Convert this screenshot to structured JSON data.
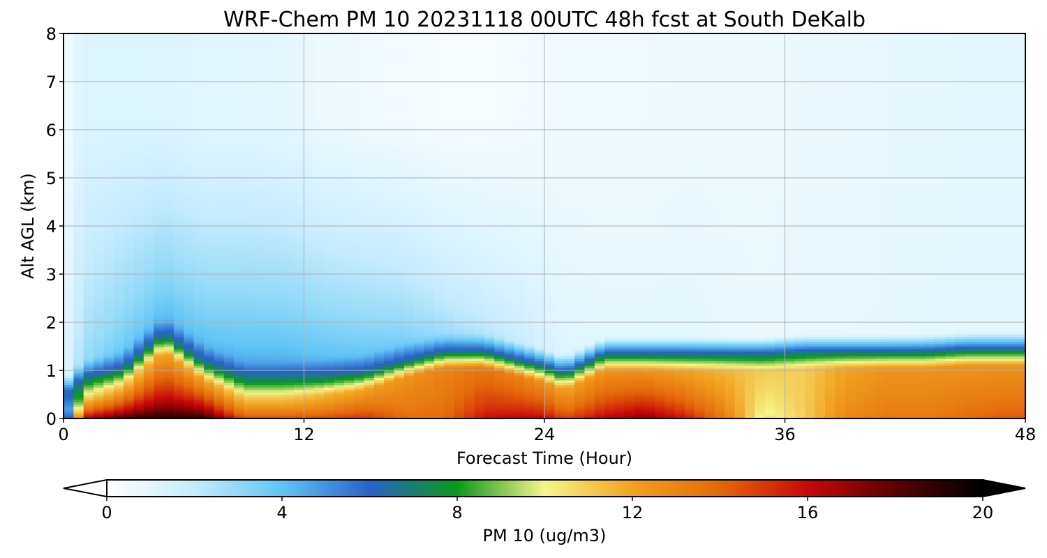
{
  "chart_data": {
    "type": "heatmap",
    "title": "WRF-Chem PM 10  20231118 00UTC 48h fcst at South DeKalb",
    "xlabel": "Forecast Time (Hour)",
    "ylabel": "Alt AGL (km)",
    "xlim": [
      0,
      48
    ],
    "ylim": [
      0,
      8
    ],
    "xticks": [
      0,
      12,
      24,
      36,
      48
    ],
    "yticks": [
      0,
      1,
      2,
      3,
      4,
      5,
      6,
      7,
      8
    ],
    "grid": true,
    "colorbar": {
      "label": "PM 10  (ug/m3)",
      "range": [
        0,
        20
      ],
      "ticks": [
        0,
        4,
        8,
        12,
        16,
        20
      ],
      "extend": "both",
      "colors": [
        "#ffffff",
        "#c4ecfd",
        "#5fc5f5",
        "#2a62c8",
        "#0a9a1b",
        "#f6f58a",
        "#f1a221",
        "#e4680a",
        "#c80808",
        "#5a0000",
        "#000000"
      ]
    },
    "x": [
      0,
      1,
      3,
      5,
      7,
      9,
      11,
      13,
      15,
      17,
      19,
      21,
      23,
      24,
      25,
      27,
      29,
      31,
      33,
      35,
      37,
      39,
      41,
      43,
      45,
      47,
      48
    ],
    "levels_km": [
      0.05,
      0.2,
      0.4,
      0.6,
      0.8,
      1.0,
      1.2,
      1.5,
      2.0,
      2.5,
      3.0,
      4.0,
      5.0,
      6.0,
      7.0,
      8.0
    ],
    "profiles": [
      {
        "hour": 0,
        "mix_top_km": 0.1,
        "surface": 3.0,
        "peak": 3.0,
        "aloft": 1.0,
        "top": 0.3
      },
      {
        "hour": 1,
        "mix_top_km": 0.5,
        "surface": 17.0,
        "peak": 10.0,
        "aloft": 3.0,
        "top": 1.2
      },
      {
        "hour": 3,
        "mix_top_km": 0.7,
        "surface": 19.0,
        "peak": 11.0,
        "aloft": 4.0,
        "top": 1.2
      },
      {
        "hour": 5,
        "mix_top_km": 1.4,
        "surface": 19.5,
        "peak": 12.0,
        "aloft": 4.5,
        "top": 1.2
      },
      {
        "hour": 7,
        "mix_top_km": 0.8,
        "surface": 19.5,
        "peak": 12.0,
        "aloft": 4.5,
        "top": 1.0
      },
      {
        "hour": 9,
        "mix_top_km": 0.45,
        "surface": 15.0,
        "peak": 11.0,
        "aloft": 4.8,
        "top": 1.0
      },
      {
        "hour": 11,
        "mix_top_km": 0.45,
        "surface": 15.0,
        "peak": 11.0,
        "aloft": 4.8,
        "top": 0.9
      },
      {
        "hour": 13,
        "mix_top_km": 0.5,
        "surface": 15.0,
        "peak": 11.5,
        "aloft": 4.5,
        "top": 0.6
      },
      {
        "hour": 15,
        "mix_top_km": 0.6,
        "surface": 15.5,
        "peak": 12.0,
        "aloft": 4.2,
        "top": 0.5
      },
      {
        "hour": 17,
        "mix_top_km": 0.85,
        "surface": 14.0,
        "peak": 12.5,
        "aloft": 3.8,
        "top": 0.4
      },
      {
        "hour": 19,
        "mix_top_km": 1.05,
        "surface": 14.0,
        "peak": 13.0,
        "aloft": 3.0,
        "top": 0.3
      },
      {
        "hour": 21,
        "mix_top_km": 1.05,
        "surface": 16.0,
        "peak": 13.5,
        "aloft": 2.5,
        "top": 0.3
      },
      {
        "hour": 23,
        "mix_top_km": 0.85,
        "surface": 16.5,
        "peak": 13.0,
        "aloft": 2.0,
        "top": 0.4
      },
      {
        "hour": 24,
        "mix_top_km": 0.75,
        "surface": 16.5,
        "peak": 12.5,
        "aloft": 1.5,
        "top": 0.5
      },
      {
        "hour": 25,
        "mix_top_km": 0.6,
        "surface": 15.0,
        "peak": 12.0,
        "aloft": 1.2,
        "top": 0.5
      },
      {
        "hour": 27,
        "mix_top_km": 1.0,
        "surface": 16.5,
        "peak": 12.5,
        "aloft": 1.0,
        "top": 0.5
      },
      {
        "hour": 29,
        "mix_top_km": 1.0,
        "surface": 17.5,
        "peak": 12.5,
        "aloft": 1.0,
        "top": 0.5
      },
      {
        "hour": 31,
        "mix_top_km": 1.0,
        "surface": 16.0,
        "peak": 12.0,
        "aloft": 1.0,
        "top": 0.6
      },
      {
        "hour": 33,
        "mix_top_km": 1.0,
        "surface": 13.5,
        "peak": 11.5,
        "aloft": 0.8,
        "top": 0.6
      },
      {
        "hour": 35,
        "mix_top_km": 1.0,
        "surface": 9.5,
        "peak": 11.0,
        "aloft": 0.7,
        "top": 0.6
      },
      {
        "hour": 37,
        "mix_top_km": 1.05,
        "surface": 11.0,
        "peak": 11.0,
        "aloft": 0.8,
        "top": 0.7
      },
      {
        "hour": 39,
        "mix_top_km": 1.05,
        "surface": 13.0,
        "peak": 12.0,
        "aloft": 0.8,
        "top": 0.7
      },
      {
        "hour": 41,
        "mix_top_km": 1.05,
        "surface": 13.5,
        "peak": 12.5,
        "aloft": 0.8,
        "top": 0.8
      },
      {
        "hour": 43,
        "mix_top_km": 1.05,
        "surface": 13.5,
        "peak": 12.5,
        "aloft": 0.9,
        "top": 0.8
      },
      {
        "hour": 45,
        "mix_top_km": 1.1,
        "surface": 14.0,
        "peak": 12.5,
        "aloft": 0.9,
        "top": 0.9
      },
      {
        "hour": 47,
        "mix_top_km": 1.1,
        "surface": 14.5,
        "peak": 12.5,
        "aloft": 0.9,
        "top": 0.9
      },
      {
        "hour": 48,
        "mix_top_km": 1.1,
        "surface": 14.5,
        "peak": 12.5,
        "aloft": 0.9,
        "top": 0.9
      }
    ]
  }
}
